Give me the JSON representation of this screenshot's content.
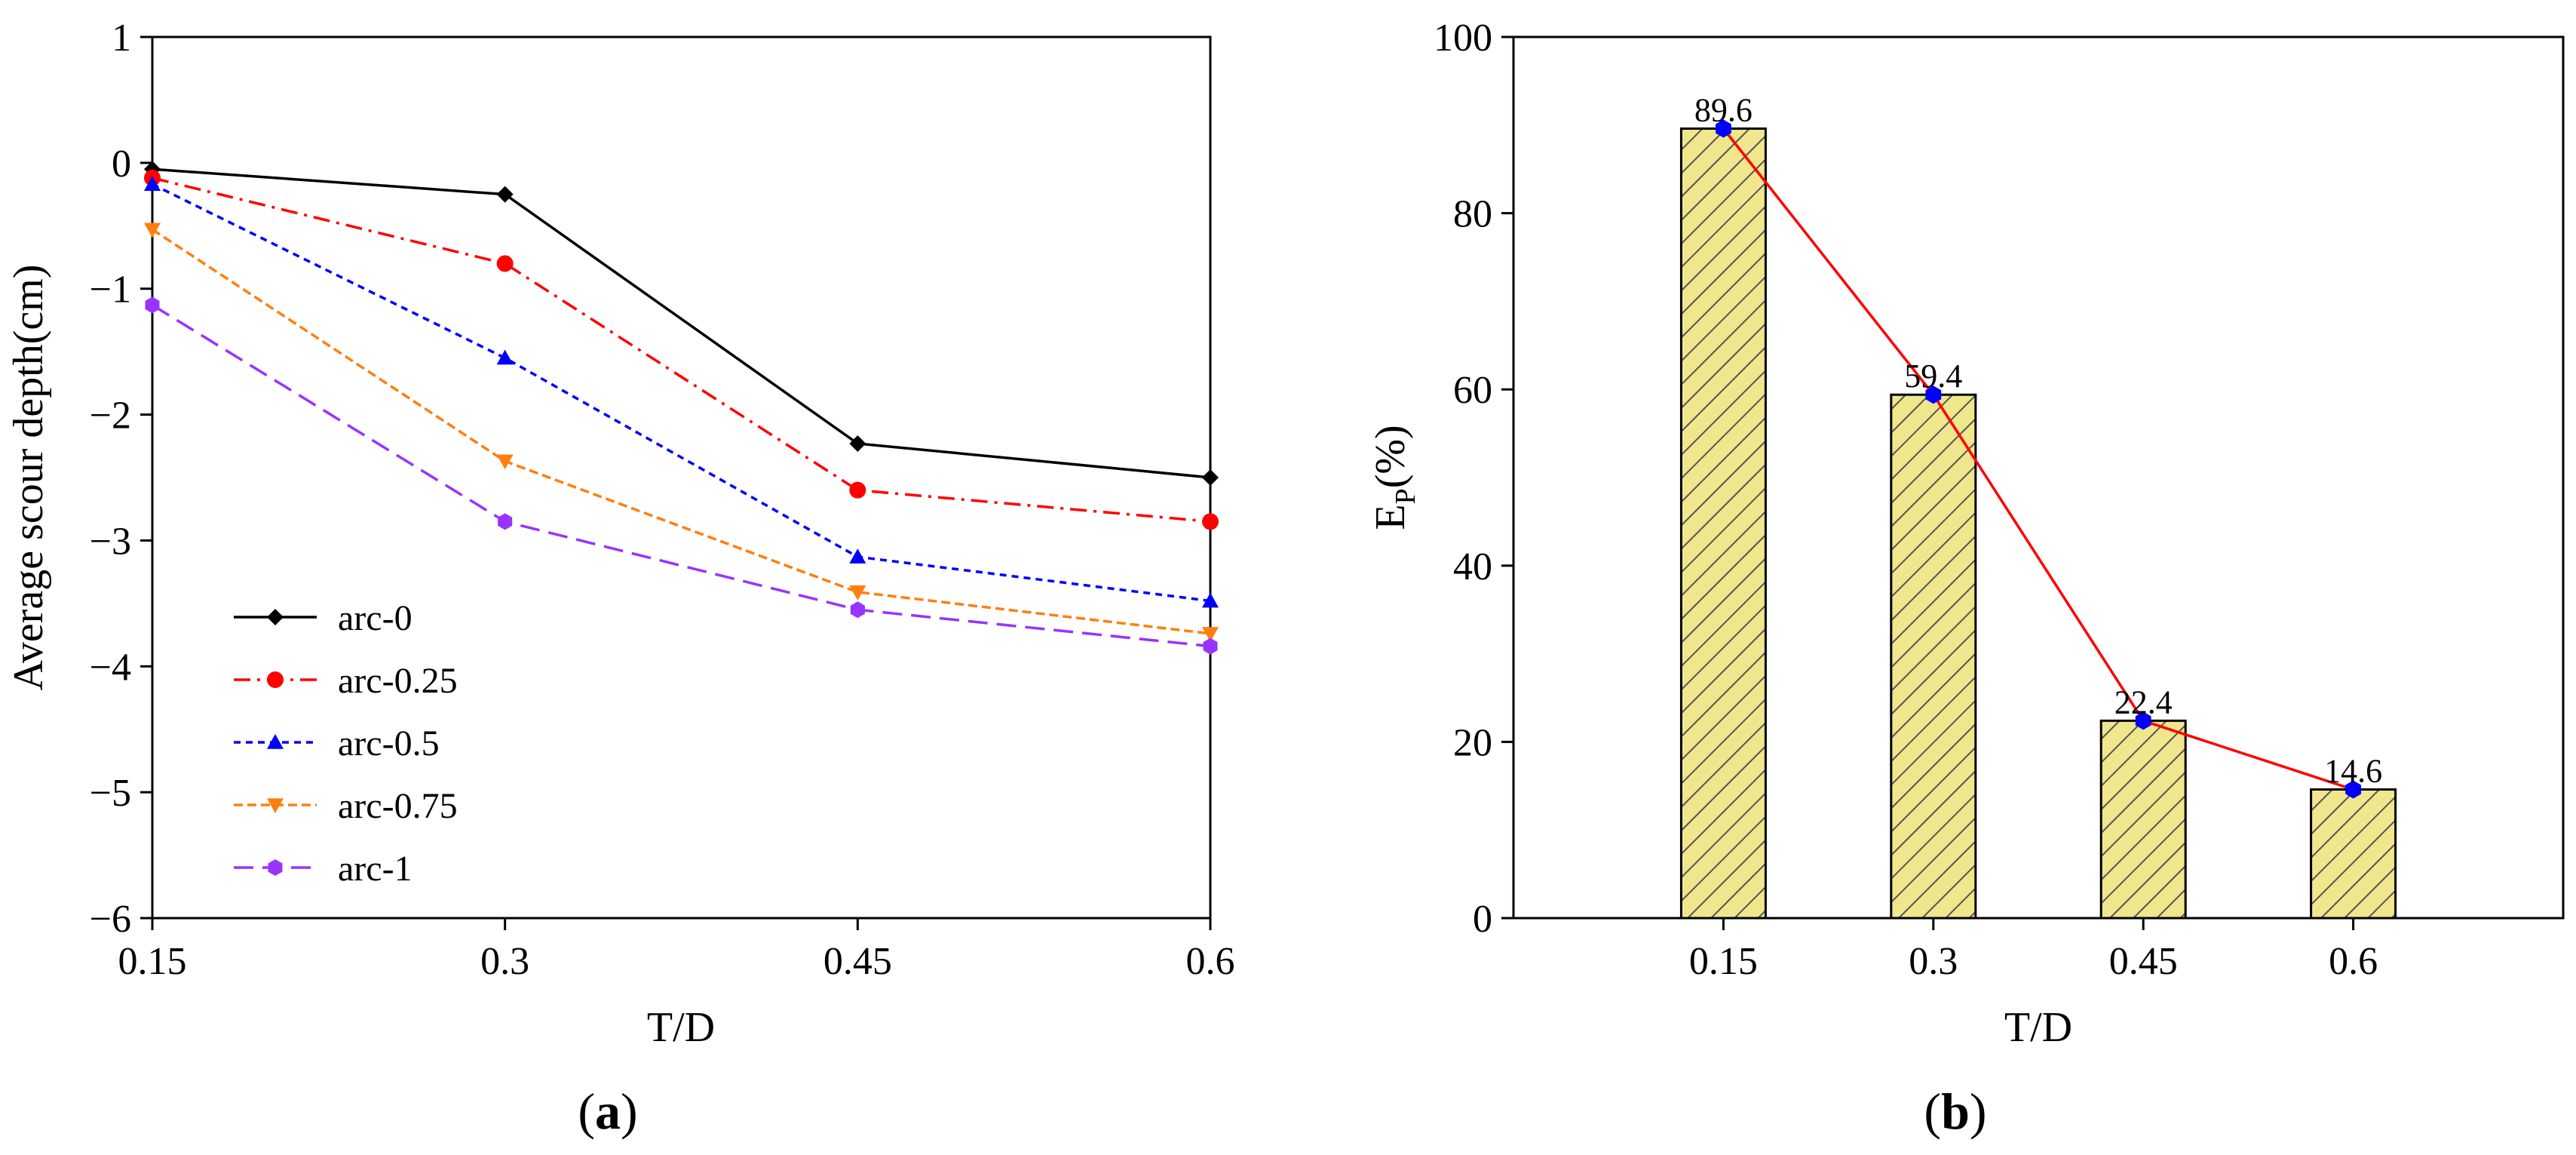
{
  "chart_data": [
    {
      "panel": "a",
      "panel_label": {
        "open": "(",
        "letter": "a",
        "close": ")"
      },
      "type": "line",
      "xlabel": "T/D",
      "ylabel": "Average scour depth(cm)",
      "x": [
        0.15,
        0.3,
        0.45,
        0.6
      ],
      "x_tick_labels": [
        "0.15",
        "0.3",
        "0.45",
        "0.6"
      ],
      "ylim": [
        -6,
        1
      ],
      "y_ticks": [
        1,
        0,
        -1,
        -2,
        -3,
        -4,
        -5,
        -6
      ],
      "y_tick_labels": [
        "1",
        "0",
        "−1",
        "−2",
        "−3",
        "−4",
        "−5",
        "−6"
      ],
      "grid": false,
      "legend_position": "lower-left",
      "series": [
        {
          "name": "arc-0",
          "values": [
            -0.05,
            -0.25,
            -2.23,
            -2.5
          ],
          "color": "#000000",
          "marker": "diamond",
          "dash": ""
        },
        {
          "name": "arc-0.25",
          "values": [
            -0.12,
            -0.8,
            -2.6,
            -2.85
          ],
          "color": "#ff0000",
          "marker": "circle",
          "dash": "22 9 4 9"
        },
        {
          "name": "arc-0.5",
          "values": [
            -0.17,
            -1.55,
            -3.13,
            -3.48
          ],
          "color": "#0000ff",
          "marker": "triangle-up",
          "dash": "9 7"
        },
        {
          "name": "arc-0.75",
          "values": [
            -0.53,
            -2.37,
            -3.41,
            -3.74
          ],
          "color": "#ff7f0e",
          "marker": "triangle-down",
          "dash": "12 6"
        },
        {
          "name": "arc-1",
          "values": [
            -1.13,
            -2.85,
            -3.55,
            -3.84
          ],
          "color": "#9933ff",
          "marker": "hexagon",
          "dash": "26 12"
        }
      ]
    },
    {
      "panel": "b",
      "panel_label": {
        "open": "(",
        "letter": "b",
        "close": ")"
      },
      "type": "bar",
      "xlabel": "T/D",
      "ylabel_main": "E",
      "ylabel_sub": "P",
      "ylabel_suffix": "(%)",
      "categories": [
        "0.15",
        "0.3",
        "0.45",
        "0.6"
      ],
      "values": [
        89.6,
        59.4,
        22.4,
        14.6
      ],
      "value_labels": [
        "89.6",
        "59.4",
        "22.4",
        "14.6"
      ],
      "ylim": [
        0,
        100
      ],
      "y_ticks": [
        0,
        20,
        40,
        60,
        80,
        100
      ],
      "y_tick_labels": [
        "0",
        "20",
        "40",
        "60",
        "80",
        "100"
      ],
      "grid": false,
      "bar_fill": "#f0e68c",
      "bar_hatch": "#555555",
      "line_color": "#ff0000",
      "marker_color": "#0000ff"
    }
  ]
}
